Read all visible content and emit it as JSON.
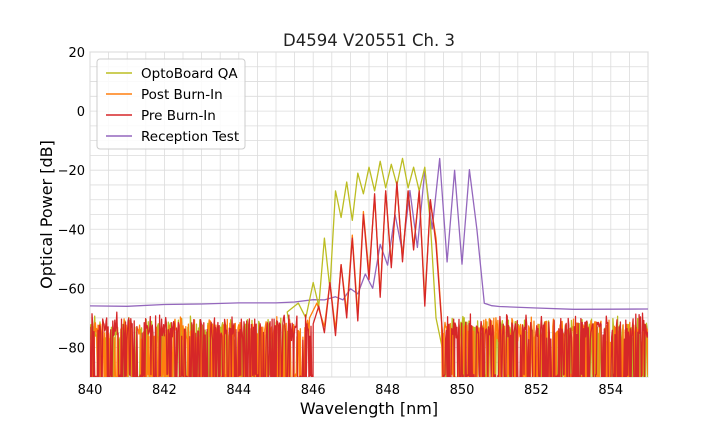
{
  "chart_data": {
    "type": "line",
    "title": "D4594 V20551 Ch. 3",
    "xlabel": "Wavelength [nm]",
    "ylabel": "Optical Power [dB]",
    "xlim": [
      840,
      855
    ],
    "ylim": [
      -90,
      20
    ],
    "xticks": [
      840,
      842,
      844,
      846,
      848,
      850,
      852,
      854
    ],
    "yticks": [
      20,
      0,
      -20,
      -40,
      -60,
      -80
    ],
    "ytick_labels": [
      "20",
      "0",
      "−20",
      "−40",
      "−60",
      "−80"
    ],
    "grid": true,
    "legend_position": "top-left",
    "series": [
      {
        "name": "OptoBoard QA",
        "color": "#bcbd22",
        "noise_floor": -83,
        "noise_span": [
          840,
          845.4
        ],
        "x": [
          845.3,
          845.6,
          845.8,
          846.0,
          846.15,
          846.3,
          846.45,
          846.6,
          846.75,
          846.9,
          847.05,
          847.2,
          847.35,
          847.5,
          847.65,
          847.8,
          847.95,
          848.1,
          848.25,
          848.4,
          848.55,
          848.7,
          848.85,
          849.0,
          849.15,
          849.3,
          849.5
        ],
        "y": [
          -68,
          -65,
          -70,
          -58,
          -66,
          -43,
          -60,
          -27,
          -36,
          -24,
          -37,
          -21,
          -28,
          -19,
          -27,
          -17,
          -26,
          -18,
          -25,
          -16,
          -26,
          -19,
          -27,
          -19,
          -38,
          -70,
          -82
        ]
      },
      {
        "name": "Post Burn-In",
        "color": "#ff7f0e",
        "noise_floor": -83,
        "noise_span": [
          840,
          845.9
        ],
        "x": [
          845.9,
          846.1,
          846.3,
          846.45,
          846.6,
          846.75,
          846.9,
          847.05,
          847.2,
          847.35,
          847.5,
          847.65,
          847.8,
          847.95,
          848.1,
          848.25,
          848.4,
          848.55,
          848.7,
          848.85,
          849.0,
          849.15,
          849.3,
          849.45
        ],
        "y": [
          -70,
          -65,
          -73,
          -58,
          -74,
          -52,
          -68,
          -42,
          -69,
          -34,
          -55,
          -29,
          -62,
          -27,
          -52,
          -25,
          -50,
          -27,
          -46,
          -27,
          -64,
          -31,
          -43,
          -70
        ]
      },
      {
        "name": "Pre Burn-In",
        "color": "#d62728",
        "noise_floor": -82,
        "noise_span": [
          840,
          846.0
        ],
        "x": [
          846.0,
          846.15,
          846.3,
          846.45,
          846.6,
          846.75,
          846.9,
          847.05,
          847.2,
          847.35,
          847.5,
          847.65,
          847.8,
          847.95,
          848.1,
          848.25,
          848.4,
          848.55,
          848.7,
          848.85,
          849.0,
          849.15,
          849.3,
          849.45
        ],
        "y": [
          -72,
          -66,
          -75,
          -58,
          -76,
          -52,
          -70,
          -43,
          -71,
          -35,
          -57,
          -28,
          -63,
          -27,
          -53,
          -24,
          -51,
          -27,
          -47,
          -27,
          -66,
          -30,
          -45,
          -71
        ]
      },
      {
        "name": "Reception Test",
        "color": "#9467bd",
        "x": [
          840,
          841,
          842,
          843,
          844,
          845,
          845.5,
          846.0,
          846.3,
          846.6,
          846.8,
          847.0,
          847.2,
          847.4,
          847.6,
          847.8,
          848.0,
          848.2,
          848.4,
          848.6,
          848.8,
          849.0,
          849.2,
          849.4,
          849.6,
          849.8,
          850.0,
          850.2,
          850.4,
          850.6,
          850.8,
          851,
          852,
          853,
          854,
          855
        ],
        "y": [
          -66,
          -66,
          -65.5,
          -65.5,
          -65,
          -65,
          -64.5,
          -64,
          -64,
          -63,
          -64,
          -60,
          -62,
          -55,
          -60,
          -45,
          -52,
          -35,
          -48,
          -27,
          -46,
          -20,
          -40,
          -16,
          -51,
          -20,
          -52,
          -20,
          -40,
          -65,
          -66,
          -66,
          -66.5,
          -67,
          -67,
          -67
        ]
      }
    ]
  }
}
